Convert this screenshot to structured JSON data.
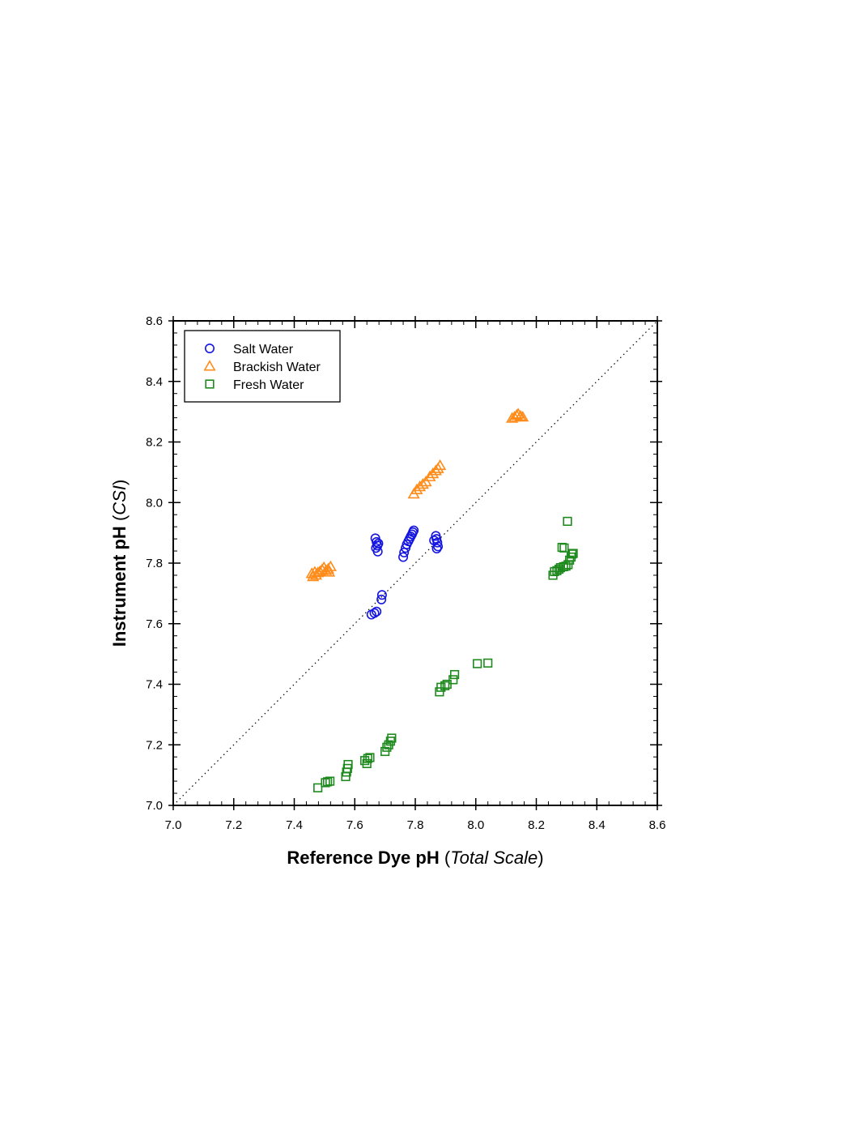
{
  "chart_data": {
    "type": "scatter",
    "xlabel": {
      "main": "Reference Dye pH",
      "paren_open": " (",
      "italic": "Total Scale",
      "paren_close": ")"
    },
    "ylabel": {
      "main": "Instrument pH",
      "paren_open": " (",
      "italic": "CSI",
      "paren_close": ")"
    },
    "xlim": [
      7.0,
      8.6
    ],
    "ylim": [
      7.0,
      8.6
    ],
    "x_ticks": [
      "7.0",
      "7.2",
      "7.4",
      "7.6",
      "7.8",
      "8.0",
      "8.2",
      "8.4",
      "8.6"
    ],
    "y_ticks": [
      "7.0",
      "7.2",
      "7.4",
      "7.6",
      "7.8",
      "8.0",
      "8.2",
      "8.4",
      "8.6"
    ],
    "grid": false,
    "legend_position": "top-left",
    "reference_line": {
      "type": "1:1",
      "style": "dotted"
    },
    "series": [
      {
        "name": "Salt Water",
        "marker": "circle",
        "color": "#1515e0",
        "points": [
          [
            7.655,
            7.63
          ],
          [
            7.665,
            7.635
          ],
          [
            7.672,
            7.64
          ],
          [
            7.688,
            7.68
          ],
          [
            7.69,
            7.695
          ],
          [
            7.668,
            7.882
          ],
          [
            7.672,
            7.87
          ],
          [
            7.675,
            7.858
          ],
          [
            7.67,
            7.85
          ],
          [
            7.676,
            7.838
          ],
          [
            7.678,
            7.865
          ],
          [
            7.76,
            7.82
          ],
          [
            7.763,
            7.835
          ],
          [
            7.768,
            7.85
          ],
          [
            7.772,
            7.862
          ],
          [
            7.777,
            7.872
          ],
          [
            7.781,
            7.88
          ],
          [
            7.785,
            7.888
          ],
          [
            7.789,
            7.895
          ],
          [
            7.792,
            7.902
          ],
          [
            7.795,
            7.908
          ],
          [
            7.862,
            7.875
          ],
          [
            7.868,
            7.89
          ],
          [
            7.87,
            7.88
          ],
          [
            7.873,
            7.868
          ],
          [
            7.875,
            7.855
          ],
          [
            7.871,
            7.848
          ]
        ]
      },
      {
        "name": "Brackish Water",
        "marker": "triangle",
        "color": "#ff8c1a",
        "points": [
          [
            7.458,
            7.765
          ],
          [
            7.462,
            7.755
          ],
          [
            7.468,
            7.77
          ],
          [
            7.472,
            7.76
          ],
          [
            7.478,
            7.768
          ],
          [
            7.485,
            7.772
          ],
          [
            7.492,
            7.778
          ],
          [
            7.498,
            7.785
          ],
          [
            7.505,
            7.775
          ],
          [
            7.512,
            7.78
          ],
          [
            7.52,
            7.788
          ],
          [
            7.515,
            7.77
          ],
          [
            7.795,
            8.028
          ],
          [
            7.805,
            8.042
          ],
          [
            7.815,
            8.052
          ],
          [
            7.825,
            8.06
          ],
          [
            7.835,
            8.068
          ],
          [
            7.848,
            8.085
          ],
          [
            7.858,
            8.095
          ],
          [
            7.868,
            8.105
          ],
          [
            7.875,
            8.112
          ],
          [
            7.882,
            8.122
          ],
          [
            8.12,
            8.278
          ],
          [
            8.128,
            8.282
          ],
          [
            8.135,
            8.288
          ],
          [
            8.14,
            8.292
          ],
          [
            8.148,
            8.285
          ],
          [
            8.155,
            8.282
          ]
        ]
      },
      {
        "name": "Fresh Water",
        "marker": "square",
        "color": "#1e8a1e",
        "points": [
          [
            7.478,
            7.058
          ],
          [
            7.503,
            7.075
          ],
          [
            7.51,
            7.078
          ],
          [
            7.518,
            7.08
          ],
          [
            7.57,
            7.095
          ],
          [
            7.573,
            7.11
          ],
          [
            7.576,
            7.122
          ],
          [
            7.578,
            7.135
          ],
          [
            7.633,
            7.148
          ],
          [
            7.64,
            7.138
          ],
          [
            7.643,
            7.155
          ],
          [
            7.65,
            7.158
          ],
          [
            7.7,
            7.178
          ],
          [
            7.706,
            7.192
          ],
          [
            7.712,
            7.2
          ],
          [
            7.718,
            7.212
          ],
          [
            7.722,
            7.222
          ],
          [
            7.88,
            7.375
          ],
          [
            7.885,
            7.39
          ],
          [
            7.898,
            7.395
          ],
          [
            7.905,
            7.4
          ],
          [
            7.925,
            7.415
          ],
          [
            7.93,
            7.432
          ],
          [
            8.005,
            7.468
          ],
          [
            8.04,
            7.47
          ],
          [
            8.255,
            7.76
          ],
          [
            8.26,
            7.772
          ],
          [
            8.268,
            7.775
          ],
          [
            8.275,
            7.78
          ],
          [
            8.28,
            7.785
          ],
          [
            8.29,
            7.788
          ],
          [
            8.298,
            7.79
          ],
          [
            8.305,
            7.795
          ],
          [
            8.31,
            7.81
          ],
          [
            8.315,
            7.82
          ],
          [
            8.318,
            7.83
          ],
          [
            8.322,
            7.832
          ],
          [
            8.285,
            7.852
          ],
          [
            8.292,
            7.85
          ],
          [
            8.303,
            7.938
          ]
        ]
      }
    ]
  }
}
